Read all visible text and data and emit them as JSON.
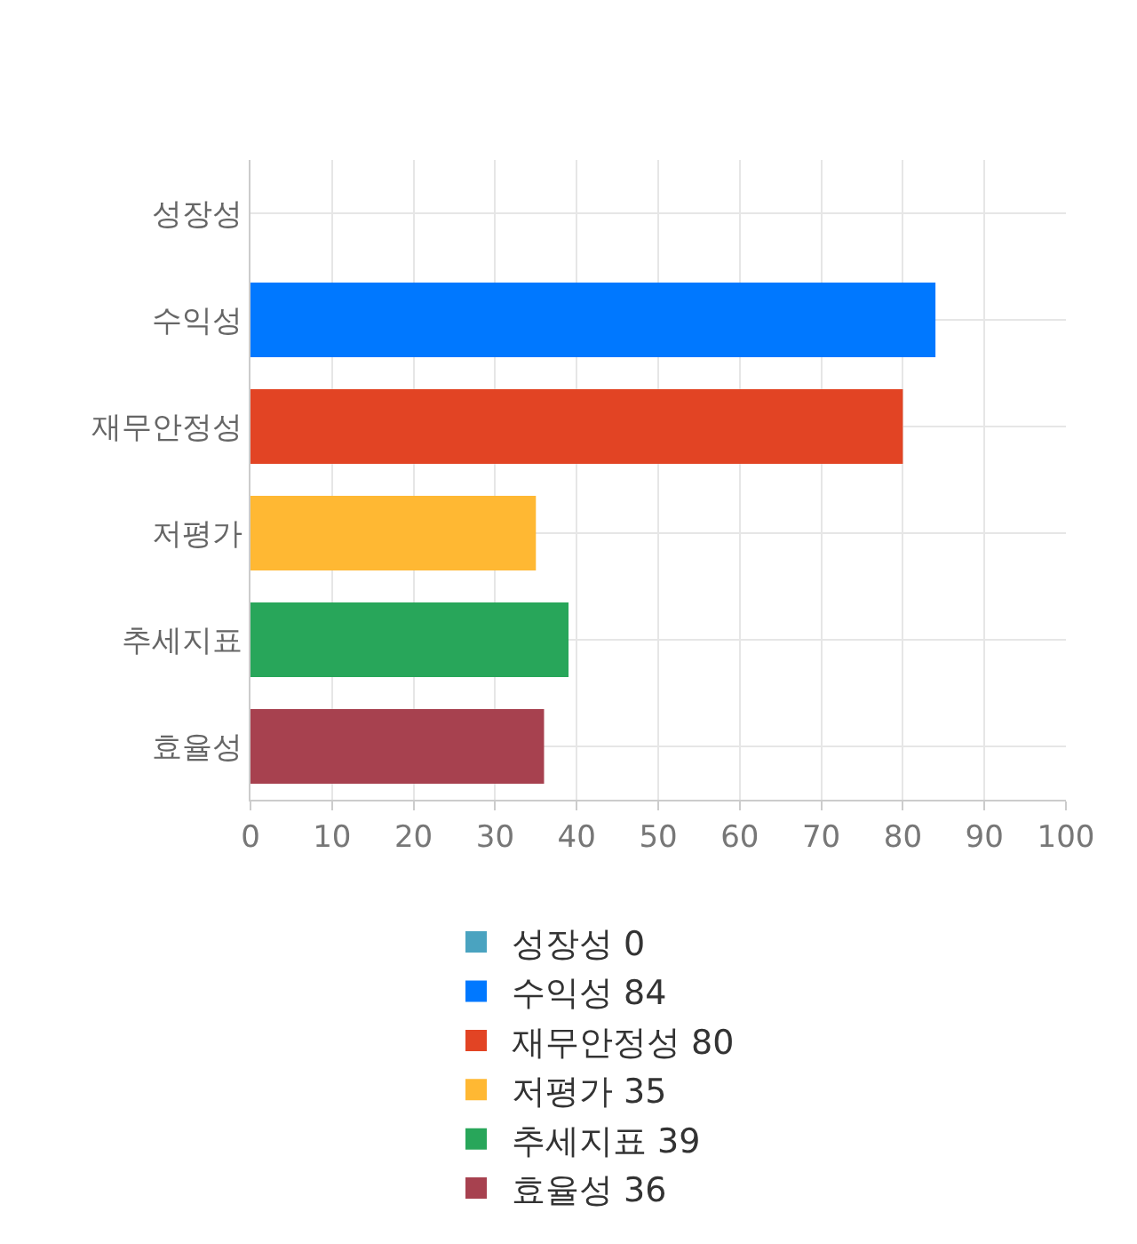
{
  "chart_data": {
    "type": "bar",
    "orientation": "horizontal",
    "categories": [
      "성장성",
      "수익성",
      "재무안정성",
      "저평가",
      "추세지표",
      "효율성"
    ],
    "series": [
      {
        "name": "성장성 0",
        "color": "#4aa3c0",
        "values": [
          0,
          null,
          null,
          null,
          null,
          null
        ]
      },
      {
        "name": "수익성 84",
        "color": "#0078ff",
        "values": [
          null,
          84,
          null,
          null,
          null,
          null
        ]
      },
      {
        "name": "재무안정성 80",
        "color": "#e24424",
        "values": [
          null,
          null,
          80,
          null,
          null,
          null
        ]
      },
      {
        "name": "저평가 35",
        "color": "#ffb833",
        "values": [
          null,
          null,
          null,
          35,
          null,
          null
        ]
      },
      {
        "name": "추세지표 39",
        "color": "#28a65a",
        "values": [
          null,
          null,
          null,
          null,
          39,
          null
        ]
      },
      {
        "name": "효율성 36",
        "color": "#a7414f",
        "values": [
          null,
          null,
          null,
          null,
          null,
          36
        ]
      }
    ],
    "xlim": [
      0,
      100
    ],
    "xticks": [
      0,
      10,
      20,
      30,
      40,
      50,
      60,
      70,
      80,
      90,
      100
    ],
    "grid": true,
    "legend": "bottom"
  }
}
